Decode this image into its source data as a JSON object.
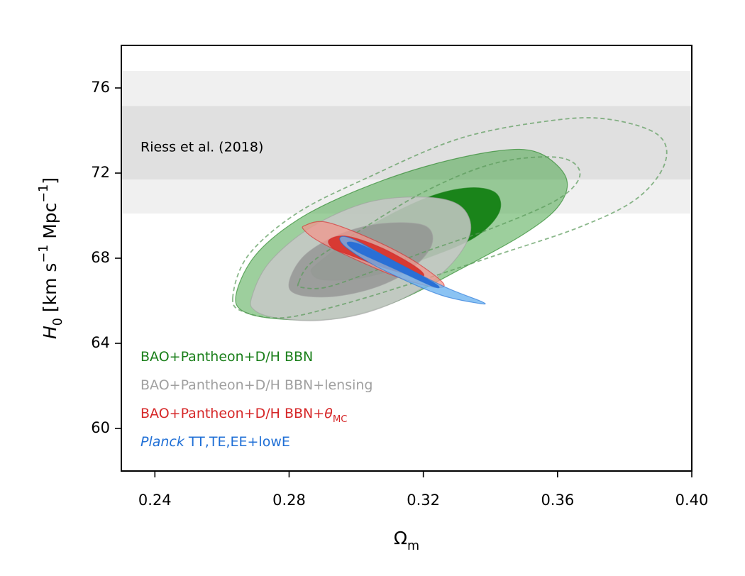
{
  "chart_data": {
    "type": "contour",
    "xlabel": [
      {
        "text": "Ω"
      },
      {
        "text": "m",
        "style": "sub"
      }
    ],
    "ylabel": [
      {
        "text": "H",
        "style": "italic"
      },
      {
        "text": "0",
        "style": "sub"
      },
      {
        "text": " [km s"
      },
      {
        "text": "−1",
        "style": "sup"
      },
      {
        "text": " Mpc"
      },
      {
        "text": "−1",
        "style": "sup"
      },
      {
        "text": "]"
      }
    ],
    "xlim": [
      0.23,
      0.4
    ],
    "ylim": [
      58,
      78
    ],
    "xticks": [
      0.24,
      0.28,
      0.32,
      0.36,
      {
        "value": 0.4,
        "label": "0.40"
      }
    ],
    "yticks": [
      60,
      64,
      68,
      72,
      76
    ],
    "band": {
      "label": "Riess et al. (2018)",
      "outer": [
        70.1,
        76.8
      ],
      "inner": [
        71.7,
        75.15
      ],
      "colors": [
        "#f0f0f0",
        "#e0e0e0"
      ]
    },
    "series": [
      {
        "name": [
          {
            "text": "BAO+Pantheon+D/H BBN"
          }
        ],
        "color": "#1a7f1a",
        "fills": [
          "rgba(60,160,60,0.5)",
          "#1a841a"
        ],
        "contours": [
          {
            "x": [
              0.2642,
              0.2699,
              0.2825,
              0.2994,
              0.3204,
              0.3415,
              0.3541,
              0.3625,
              0.3604,
              0.3499,
              0.3309,
              0.312,
              0.2952,
              0.2783,
              0.2667
            ],
            "y": [
              66.3,
              68.13,
              69.8,
              71.13,
              72.3,
              73.03,
              72.97,
              71.8,
              70.47,
              69.13,
              67.47,
              65.97,
              65.2,
              65.13,
              65.47
            ]
          },
          {
            "x": [
              0.2888,
              0.3036,
              0.3204,
              0.3331,
              0.3415,
              0.3425,
              0.3352,
              0.3204,
              0.3036,
              0.2909,
              0.2867
            ],
            "y": [
              67.8,
              69.47,
              70.8,
              71.3,
              71.07,
              70.13,
              68.97,
              67.97,
              67.13,
              66.97,
              67.3
            ]
          }
        ]
      },
      {
        "name": [
          {
            "text": "BAO+Pantheon+D/H BBN+lensing"
          }
        ],
        "color": "#a0a0a0",
        "fills": [
          "rgba(200,200,200,0.85)",
          "rgba(140,140,140,0.7)"
        ],
        "contours": [
          {
            "x": [
              0.2688,
              0.2741,
              0.2867,
              0.3036,
              0.3204,
              0.3309,
              0.3341,
              0.3288,
              0.3183,
              0.3036,
              0.2888,
              0.2762,
              0.2699
            ],
            "y": [
              66.13,
              67.8,
              69.47,
              70.63,
              70.87,
              70.47,
              69.3,
              67.8,
              66.47,
              65.47,
              65.07,
              65.2,
              65.53
            ]
          },
          {
            "x": [
              0.28,
              0.2846,
              0.2952,
              0.3078,
              0.3204,
              0.3225,
              0.3162,
              0.3057,
              0.2931,
              0.2825
            ],
            "y": [
              66.87,
              68.13,
              69.13,
              69.63,
              69.53,
              68.63,
              67.47,
              66.63,
              66.2,
              66.3
            ]
          }
        ]
      },
      {
        "color": "#5a9a5a",
        "linestyle": "dashed",
        "contours": [
          {
            "x": [
              0.2632,
              0.2678,
              0.2825,
              0.3036,
              0.3309,
              0.3583,
              0.3752,
              0.3899,
              0.392,
              0.3836,
              0.3667,
              0.3415,
              0.3162,
              0.2952,
              0.2783,
              0.2667
            ],
            "y": [
              66.13,
              68.13,
              70.13,
              71.8,
              73.63,
              74.47,
              74.53,
              73.8,
              72.47,
              70.8,
              69.47,
              68.13,
              66.8,
              65.8,
              65.2,
              65.47
            ]
          },
          {
            "x": [
              0.2829,
              0.2867,
              0.2994,
              0.3204,
              0.3415,
              0.3604,
              0.3667,
              0.3604,
              0.3415,
              0.3204,
              0.3036,
              0.2909,
              0.2837
            ],
            "y": [
              66.87,
              67.8,
              69.13,
              71.13,
              72.47,
              72.73,
              71.97,
              70.8,
              69.47,
              68.3,
              67.3,
              66.63,
              66.63
            ]
          }
        ]
      },
      {
        "name": [
          {
            "text": "BAO+Pantheon+D/H BBN+"
          },
          {
            "text": "θ",
            "style": "italic"
          },
          {
            "text": "MC",
            "style": "sub"
          }
        ],
        "color": "#d62728",
        "fills": [
          "rgba(240,150,140,0.75)",
          "#d83a33"
        ],
        "contours": [
          {
            "x": [
              0.2846,
              0.2909,
              0.3036,
              0.3162,
              0.3257,
              0.3236,
              0.312,
              0.2994,
              0.2888,
              0.2846
            ],
            "y": [
              69.53,
              69.7,
              68.97,
              67.97,
              66.87,
              66.63,
              67.13,
              67.97,
              68.8,
              69.3
            ]
          },
          {
            "x": [
              0.292,
              0.2973,
              0.3078,
              0.3183,
              0.3194,
              0.3099,
              0.2983,
              0.293
            ],
            "y": [
              68.87,
              69.03,
              68.47,
              67.53,
              67.13,
              67.47,
              68.13,
              68.47
            ]
          }
        ]
      },
      {
        "name": [
          {
            "text": "Planck",
            "style": "italic"
          },
          {
            "text": " TT,TE,EE+lowE"
          }
        ],
        "color": "#1f6fd6",
        "fills": [
          "rgba(110,180,240,0.8)",
          "#2a6fd6"
        ],
        "contours": [
          {
            "x": [
              0.2952,
              0.2994,
              0.312,
              0.3267,
              0.3373,
              0.3368,
              0.3246,
              0.3078,
              0.2973
            ],
            "y": [
              68.97,
              68.87,
              67.8,
              66.63,
              65.97,
              65.87,
              66.3,
              67.47,
              68.47
            ]
          },
          {
            "x": [
              0.2973,
              0.3015,
              0.312,
              0.3236,
              0.3229,
              0.311,
              0.3004
            ],
            "y": [
              68.73,
              68.63,
              67.8,
              66.8,
              66.67,
              67.53,
              68.3
            ]
          }
        ]
      }
    ]
  }
}
